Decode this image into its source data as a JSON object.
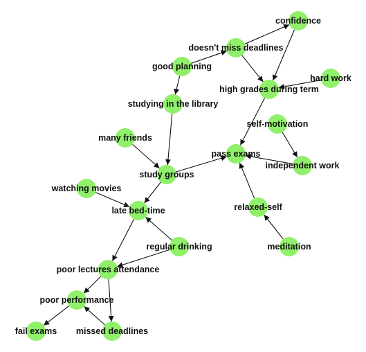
{
  "colors": {
    "node": "#90f06a",
    "edge": "#111111",
    "label": "#111111"
  },
  "nodes": [
    {
      "id": "confidence",
      "label": "confidence"
    },
    {
      "id": "deadlines",
      "label": "doesn't miss deadlines"
    },
    {
      "id": "planning",
      "label": "good planning"
    },
    {
      "id": "hardwork",
      "label": "hard work"
    },
    {
      "id": "grades",
      "label": "high grades during term"
    },
    {
      "id": "library",
      "label": "studying in the library"
    },
    {
      "id": "selfmot",
      "label": "self-motivation"
    },
    {
      "id": "friends",
      "label": "many friends"
    },
    {
      "id": "pass",
      "label": "pass exams"
    },
    {
      "id": "indep",
      "label": "independent work"
    },
    {
      "id": "groups",
      "label": "study groups"
    },
    {
      "id": "movies",
      "label": "watching movies"
    },
    {
      "id": "bedtime",
      "label": "late bed-time"
    },
    {
      "id": "relaxed",
      "label": "relaxed-self"
    },
    {
      "id": "drinking",
      "label": "regular drinking"
    },
    {
      "id": "meditation",
      "label": "meditation"
    },
    {
      "id": "lectures",
      "label": "poor lectures attendance"
    },
    {
      "id": "perf",
      "label": "poor performance"
    },
    {
      "id": "fail",
      "label": "fail exams"
    },
    {
      "id": "missed",
      "label": "missed deadlines"
    }
  ],
  "edges": [
    {
      "from": "planning",
      "to": "deadlines"
    },
    {
      "from": "deadlines",
      "to": "confidence"
    },
    {
      "from": "deadlines",
      "to": "grades"
    },
    {
      "from": "confidence",
      "to": "grades"
    },
    {
      "from": "hardwork",
      "to": "grades"
    },
    {
      "from": "planning",
      "to": "library"
    },
    {
      "from": "grades",
      "to": "pass"
    },
    {
      "from": "selfmot",
      "to": "indep"
    },
    {
      "from": "indep",
      "to": "pass"
    },
    {
      "from": "library",
      "to": "groups"
    },
    {
      "from": "friends",
      "to": "groups"
    },
    {
      "from": "groups",
      "to": "pass"
    },
    {
      "from": "relaxed",
      "to": "pass"
    },
    {
      "from": "meditation",
      "to": "relaxed"
    },
    {
      "from": "groups",
      "to": "bedtime"
    },
    {
      "from": "movies",
      "to": "bedtime"
    },
    {
      "from": "drinking",
      "to": "bedtime"
    },
    {
      "from": "bedtime",
      "to": "lectures"
    },
    {
      "from": "drinking",
      "to": "lectures"
    },
    {
      "from": "lectures",
      "to": "perf"
    },
    {
      "from": "lectures",
      "to": "missed"
    },
    {
      "from": "missed",
      "to": "perf"
    },
    {
      "from": "perf",
      "to": "fail"
    }
  ]
}
